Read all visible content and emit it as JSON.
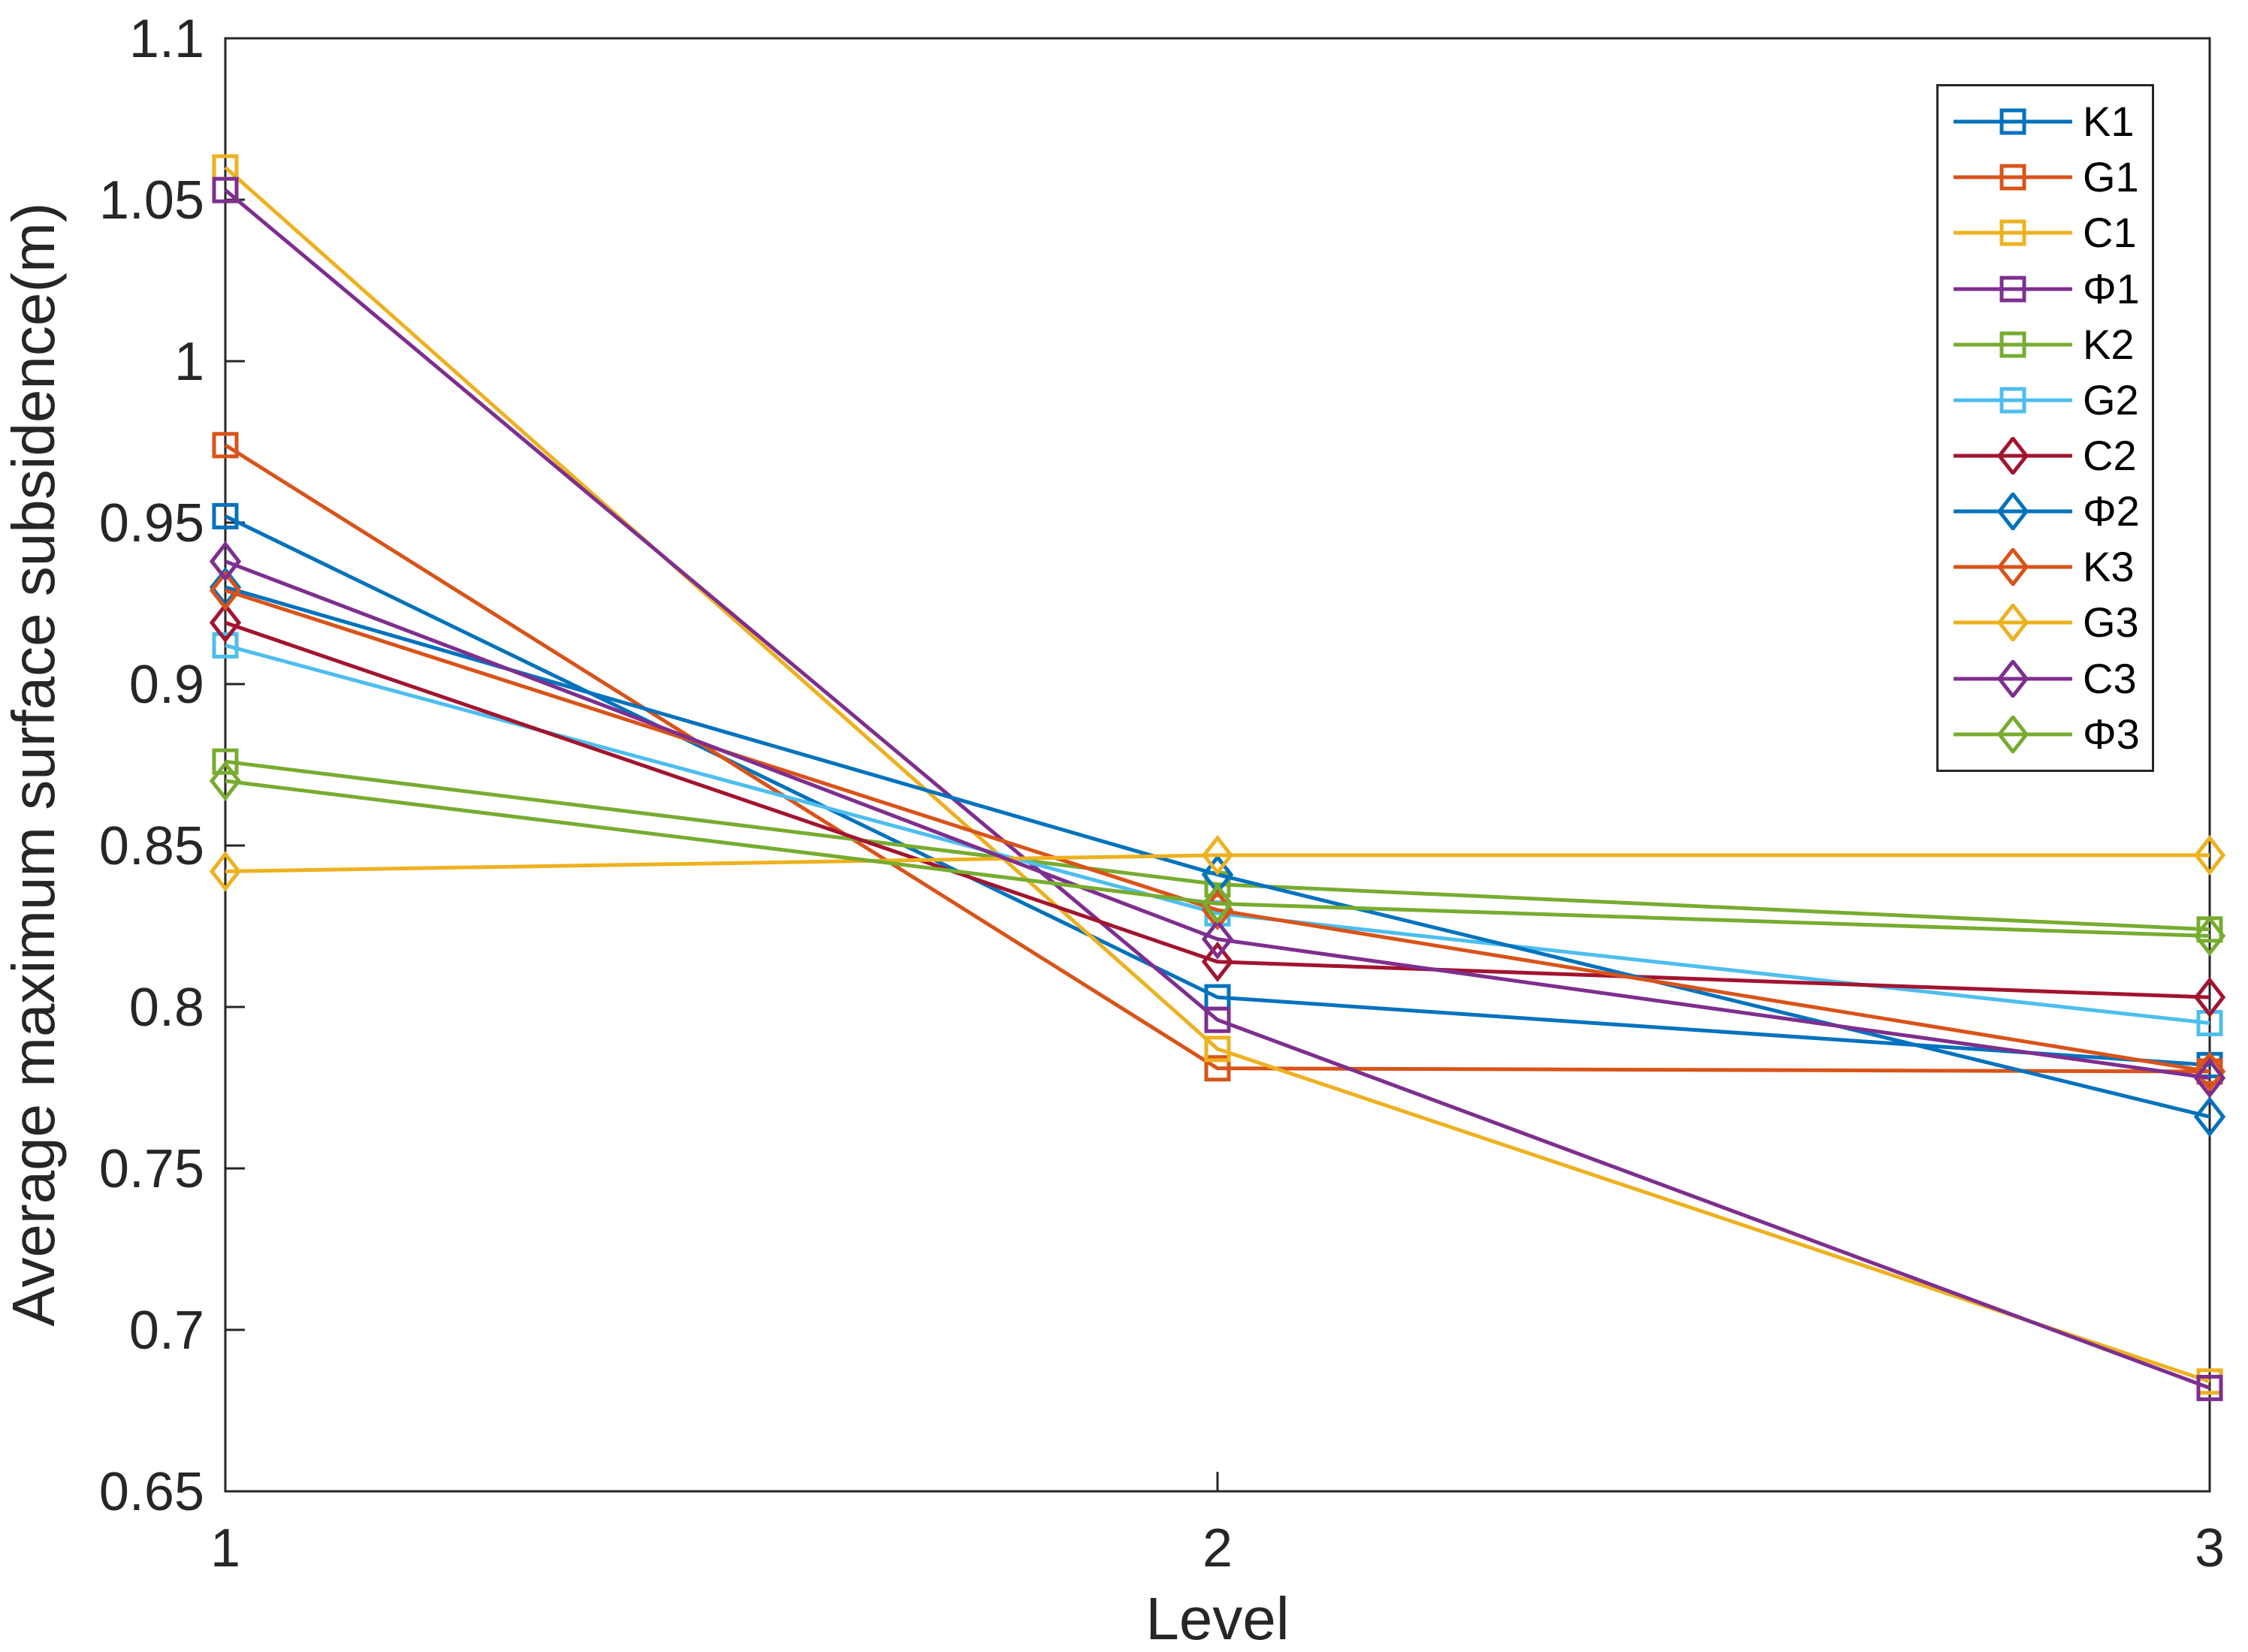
{
  "chart_data": {
    "type": "line",
    "x": [
      1,
      2,
      3
    ],
    "xlim": [
      1,
      3
    ],
    "ylim": [
      0.65,
      1.1
    ],
    "xlabel": "Level",
    "ylabel": "Average maximum surface subsidence(m)",
    "xticks": [
      1,
      2,
      3
    ],
    "xtick_labels": [
      "1",
      "2",
      "3"
    ],
    "yticks": [
      0.65,
      0.7,
      0.75,
      0.8,
      0.85,
      0.9,
      0.95,
      1.0,
      1.05,
      1.1
    ],
    "ytick_labels": [
      "0.65",
      "0.7",
      "0.75",
      "0.8",
      "0.85",
      "0.9",
      "0.95",
      "1",
      "1.05",
      "1.1"
    ],
    "grid": false,
    "legend_position": "northeast",
    "axis_color": "#262626",
    "series": [
      {
        "name": "K1",
        "color": "#0072BD",
        "marker": "square",
        "values": [
          0.952,
          0.803,
          0.782
        ]
      },
      {
        "name": "G1",
        "color": "#D95319",
        "marker": "square",
        "values": [
          0.974,
          0.781,
          0.78
        ]
      },
      {
        "name": "C1",
        "color": "#EDB120",
        "marker": "square",
        "values": [
          1.06,
          0.787,
          0.684
        ]
      },
      {
        "name": "Φ1",
        "color": "#7E2F8E",
        "marker": "square",
        "values": [
          1.053,
          0.796,
          0.682
        ]
      },
      {
        "name": "K2",
        "color": "#77AC30",
        "marker": "square",
        "values": [
          0.876,
          0.838,
          0.824
        ]
      },
      {
        "name": "G2",
        "color": "#4DBEEE",
        "marker": "square",
        "values": [
          0.912,
          0.829,
          0.795
        ]
      },
      {
        "name": "C2",
        "color": "#A2142F",
        "marker": "diamond",
        "values": [
          0.919,
          0.814,
          0.803
        ]
      },
      {
        "name": "Φ2",
        "color": "#0072BD",
        "marker": "diamond",
        "values": [
          0.93,
          0.841,
          0.766
        ]
      },
      {
        "name": "K3",
        "color": "#D95319",
        "marker": "diamond",
        "values": [
          0.929,
          0.83,
          0.78
        ]
      },
      {
        "name": "G3",
        "color": "#EDB120",
        "marker": "diamond",
        "values": [
          0.842,
          0.847,
          0.847
        ]
      },
      {
        "name": "C3",
        "color": "#7E2F8E",
        "marker": "diamond",
        "values": [
          0.938,
          0.821,
          0.778
        ]
      },
      {
        "name": "Φ3",
        "color": "#77AC30",
        "marker": "diamond",
        "values": [
          0.87,
          0.832,
          0.822
        ]
      }
    ]
  }
}
